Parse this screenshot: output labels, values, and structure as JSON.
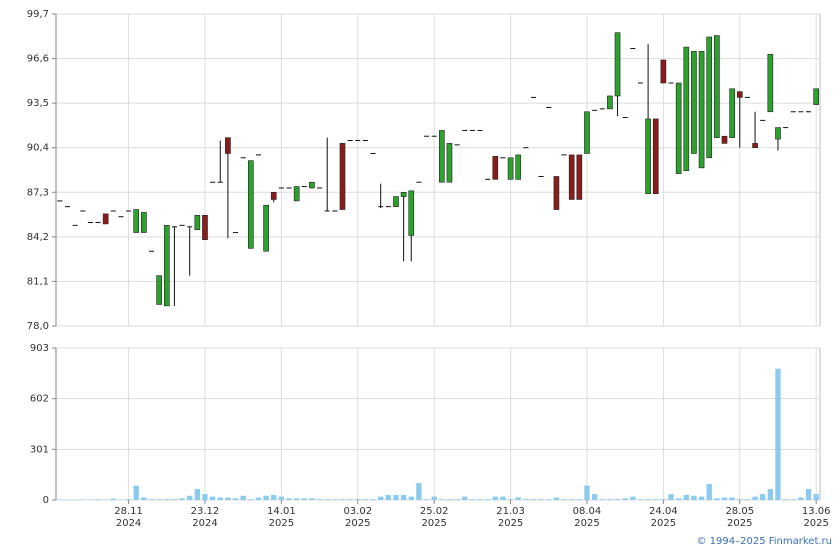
{
  "chart_data": [
    {
      "type": "candlestick",
      "up_color": "#2da12d",
      "down_color": "#8b1c1c",
      "grid": true,
      "ylim": [
        78.0,
        99.7
      ],
      "yticks": [
        {
          "value": 78.0,
          "label": "78,0"
        },
        {
          "value": 81.1,
          "label": "81,1"
        },
        {
          "value": 84.2,
          "label": "84,2"
        },
        {
          "value": 87.3,
          "label": "87,3"
        },
        {
          "value": 90.4,
          "label": "90,4"
        },
        {
          "value": 93.5,
          "label": "93,5"
        },
        {
          "value": 96.6,
          "label": "96,6"
        },
        {
          "value": 99.7,
          "label": "99,7"
        }
      ],
      "open": [
        86.7,
        86.3,
        85.0,
        86.0,
        85.2,
        85.2,
        85.8,
        86.0,
        85.6,
        86.0,
        84.5,
        84.5,
        83.2,
        79.5,
        79.4,
        84.9,
        85.0,
        84.9,
        84.7,
        85.7,
        88.0,
        88.0,
        91.1,
        84.5,
        89.7,
        83.4,
        89.9,
        83.2,
        87.3,
        87.6,
        87.6,
        86.7,
        87.7,
        87.6,
        87.6,
        86.0,
        86.0,
        90.7,
        90.9,
        90.9,
        90.9,
        90.0,
        86.3,
        86.3,
        86.3,
        87.0,
        84.3,
        88.0,
        91.2,
        91.2,
        88.0,
        88.0,
        90.6,
        91.6,
        91.6,
        91.6,
        88.2,
        89.8,
        89.7,
        88.2,
        88.2,
        90.4,
        93.9,
        88.4,
        93.2,
        88.4,
        89.9,
        89.9,
        89.9,
        90.0,
        93.0,
        93.1,
        93.1,
        94.0,
        92.5,
        97.3,
        94.9,
        87.2,
        92.4,
        96.5,
        94.9,
        88.6,
        88.8,
        90.0,
        89.0,
        89.7,
        91.1,
        91.2,
        91.1,
        94.3,
        93.9,
        90.7,
        92.3,
        92.9,
        91.0,
        91.8,
        92.9,
        92.9,
        92.9,
        93.4
      ],
      "high": [
        86.7,
        86.3,
        85.0,
        86.0,
        85.2,
        85.2,
        85.8,
        86.0,
        85.6,
        86.0,
        86.1,
        85.9,
        83.2,
        81.5,
        85.0,
        84.9,
        85.0,
        84.9,
        85.7,
        85.7,
        88.0,
        90.9,
        91.1,
        84.5,
        89.7,
        89.5,
        89.9,
        86.4,
        87.3,
        87.6,
        87.6,
        87.7,
        87.7,
        88.0,
        87.6,
        91.1,
        86.0,
        90.7,
        90.9,
        90.9,
        90.9,
        90.0,
        87.9,
        86.3,
        87.0,
        87.3,
        87.4,
        88.0,
        91.2,
        91.2,
        91.6,
        90.7,
        90.6,
        91.6,
        91.6,
        91.6,
        88.2,
        89.8,
        89.7,
        89.7,
        89.9,
        90.4,
        93.9,
        88.4,
        93.2,
        88.4,
        89.9,
        89.9,
        89.9,
        92.9,
        93.0,
        93.1,
        94.0,
        98.4,
        92.5,
        97.3,
        94.9,
        97.6,
        92.4,
        96.5,
        94.9,
        94.9,
        97.4,
        97.1,
        97.1,
        98.1,
        98.2,
        91.2,
        94.5,
        94.3,
        93.9,
        92.9,
        92.3,
        96.9,
        91.8,
        91.8,
        92.9,
        92.9,
        92.9,
        94.5
      ],
      "low": [
        86.7,
        86.3,
        85.0,
        86.0,
        85.2,
        85.2,
        85.1,
        86.0,
        85.6,
        86.0,
        84.5,
        84.5,
        83.2,
        79.5,
        79.4,
        79.4,
        85.0,
        81.5,
        84.7,
        84.0,
        88.0,
        88.0,
        84.1,
        84.5,
        89.7,
        83.4,
        89.9,
        83.2,
        86.6,
        87.6,
        87.6,
        86.7,
        87.7,
        87.6,
        87.6,
        86.0,
        86.0,
        86.1,
        90.9,
        90.9,
        90.9,
        90.0,
        86.2,
        86.3,
        86.3,
        82.5,
        82.5,
        88.0,
        91.2,
        91.2,
        88.0,
        88.0,
        90.6,
        91.6,
        91.6,
        91.6,
        88.2,
        88.2,
        89.7,
        88.2,
        88.2,
        90.4,
        93.9,
        88.4,
        93.2,
        86.1,
        89.9,
        86.8,
        86.8,
        90.0,
        93.0,
        93.1,
        93.1,
        92.6,
        92.5,
        97.3,
        94.9,
        87.2,
        87.2,
        94.9,
        94.9,
        88.6,
        88.8,
        90.0,
        89.0,
        89.7,
        91.1,
        90.7,
        91.1,
        90.4,
        93.9,
        90.4,
        92.3,
        92.9,
        90.2,
        91.8,
        92.9,
        92.9,
        92.9,
        93.4
      ],
      "close": [
        86.7,
        86.3,
        85.0,
        86.0,
        85.2,
        85.2,
        85.1,
        86.0,
        85.6,
        86.0,
        86.1,
        85.9,
        83.2,
        81.5,
        85.0,
        84.9,
        85.0,
        84.9,
        85.7,
        84.0,
        88.0,
        88.0,
        90.0,
        84.5,
        89.7,
        89.5,
        89.9,
        86.4,
        86.8,
        87.6,
        87.6,
        87.7,
        87.7,
        88.0,
        87.6,
        86.0,
        86.0,
        86.1,
        90.9,
        90.9,
        90.9,
        90.0,
        86.3,
        86.3,
        87.0,
        87.3,
        87.4,
        88.0,
        91.2,
        91.2,
        91.6,
        90.7,
        90.6,
        91.6,
        91.6,
        91.6,
        88.2,
        88.2,
        89.7,
        89.7,
        89.9,
        90.4,
        93.9,
        88.4,
        93.2,
        86.1,
        89.9,
        86.8,
        86.8,
        92.9,
        93.0,
        93.1,
        94.0,
        98.4,
        92.5,
        97.3,
        94.9,
        92.4,
        87.2,
        94.9,
        94.9,
        94.9,
        97.4,
        97.1,
        97.1,
        98.1,
        98.2,
        90.7,
        94.5,
        93.9,
        93.9,
        90.4,
        92.3,
        96.9,
        91.8,
        91.8,
        92.9,
        92.9,
        92.9,
        94.5
      ]
    },
    {
      "type": "bar",
      "color": "#8ccbf0",
      "grid": true,
      "ylim": [
        0,
        903
      ],
      "yticks": [
        0,
        301,
        602,
        903
      ],
      "categories": [
        null,
        null,
        null,
        null,
        null,
        null,
        null,
        null,
        null,
        "28.11\n2024",
        null,
        null,
        null,
        null,
        null,
        null,
        null,
        null,
        null,
        "23.12\n2024",
        null,
        null,
        null,
        null,
        null,
        null,
        null,
        null,
        null,
        "14.01\n2025",
        null,
        null,
        null,
        null,
        null,
        null,
        null,
        null,
        null,
        "03.02\n2025",
        null,
        null,
        null,
        null,
        null,
        null,
        null,
        null,
        null,
        "25.02\n2025",
        null,
        null,
        null,
        null,
        null,
        null,
        null,
        null,
        null,
        "21.03\n2025",
        null,
        null,
        null,
        null,
        null,
        null,
        null,
        null,
        null,
        "08.04\n2025",
        null,
        null,
        null,
        null,
        null,
        null,
        null,
        null,
        null,
        "24.04\n2025",
        null,
        null,
        null,
        null,
        null,
        null,
        null,
        null,
        null,
        "28.05\n2025",
        null,
        null,
        null,
        null,
        null,
        null,
        null,
        null,
        null,
        "13.06\n2025"
      ],
      "values": [
        3,
        3,
        3,
        3,
        3,
        5,
        3,
        8,
        3,
        5,
        85,
        15,
        5,
        5,
        5,
        5,
        10,
        25,
        65,
        35,
        20,
        15,
        15,
        10,
        25,
        5,
        15,
        25,
        30,
        20,
        10,
        10,
        10,
        10,
        5,
        5,
        5,
        5,
        5,
        5,
        5,
        5,
        20,
        30,
        30,
        30,
        20,
        100,
        5,
        20,
        5,
        5,
        5,
        20,
        5,
        5,
        5,
        20,
        20,
        5,
        15,
        5,
        5,
        5,
        5,
        15,
        5,
        5,
        5,
        85,
        35,
        5,
        5,
        5,
        10,
        20,
        5,
        5,
        5,
        5,
        35,
        10,
        30,
        25,
        20,
        95,
        10,
        15,
        15,
        5,
        5,
        20,
        35,
        65,
        780,
        5,
        5,
        15,
        65,
        35
      ]
    }
  ],
  "footer": "© 1994–2025 Finmarket.ru"
}
